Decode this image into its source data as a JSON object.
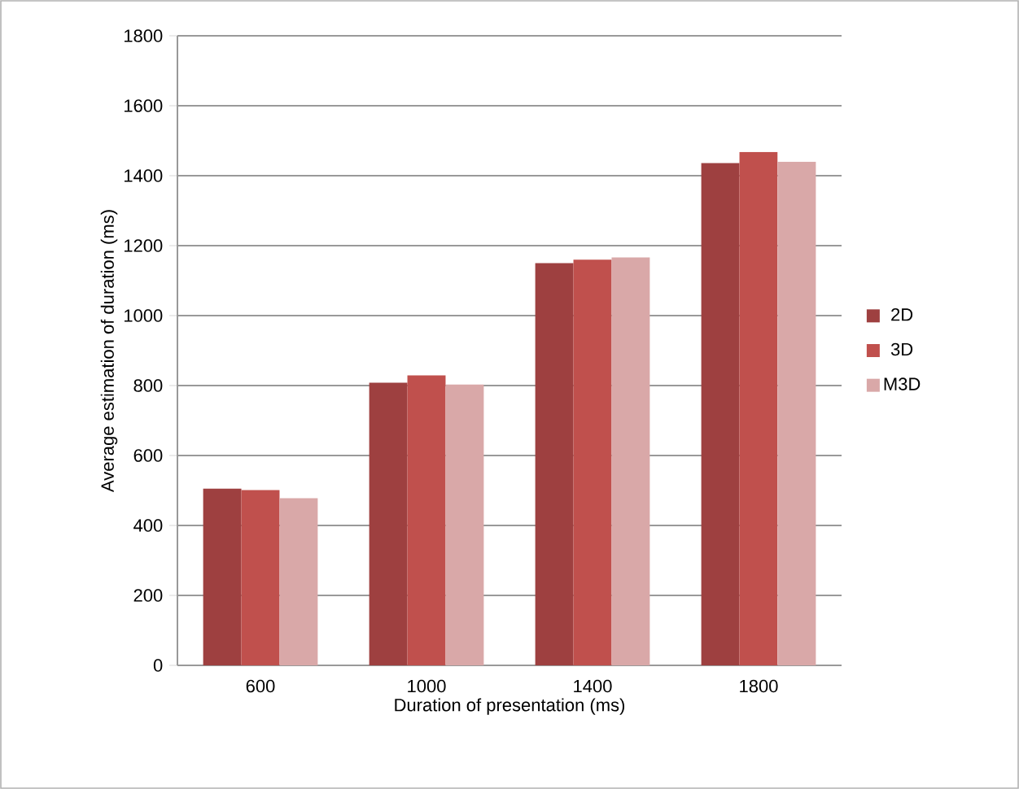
{
  "chart_data": {
    "type": "bar",
    "xlabel": "Duration of presentation (ms)",
    "ylabel": "Average estimation of duration (ms)",
    "categories": [
      "600",
      "1000",
      "1400",
      "1800"
    ],
    "series": [
      {
        "name": "2D",
        "color": "#9e4040",
        "values": [
          505,
          808,
          1150,
          1436
        ]
      },
      {
        "name": "3D",
        "color": "#c0504d",
        "values": [
          501,
          829,
          1160,
          1468
        ]
      },
      {
        "name": "M3D",
        "color": "#d9a8a8",
        "values": [
          478,
          803,
          1166,
          1440
        ]
      }
    ],
    "ylim": [
      0,
      1800
    ],
    "yticks": [
      0,
      200,
      400,
      600,
      800,
      1000,
      1200,
      1400,
      1600,
      1800
    ],
    "grid": "y",
    "legend": "right"
  }
}
